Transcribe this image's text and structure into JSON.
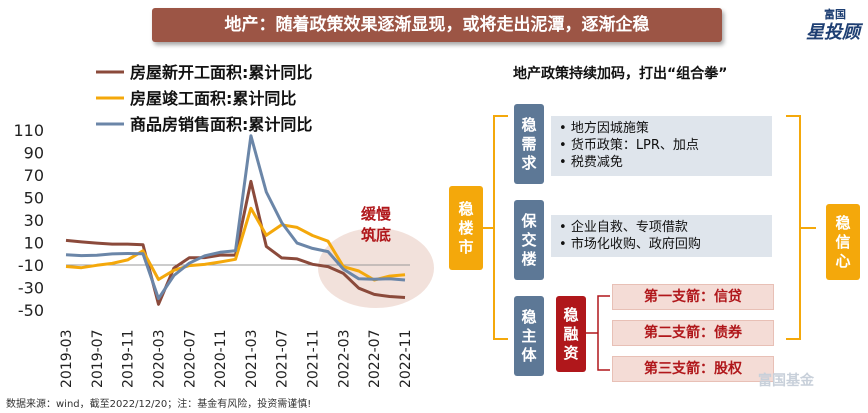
{
  "header": {
    "title": "地产：随着政策效果逐渐显现，或将走出泥潭，逐渐企稳"
  },
  "brand": {
    "small": "富国",
    "big": "星投顾",
    "watermark": "富国基金"
  },
  "footnote": "数据来源：wind，截至2022/12/20；注：基金有风险，投资需谨慎!",
  "chart_data": {
    "type": "line",
    "title": "",
    "xlabel": "",
    "ylabel": "",
    "ylim": [
      -50,
      110
    ],
    "yticks": [
      110,
      90,
      70,
      50,
      30,
      10,
      -10,
      -30,
      -50
    ],
    "x": [
      "2019-03",
      "2019-05",
      "2019-07",
      "2019-09",
      "2019-11",
      "2020-01",
      "2020-03",
      "2020-05",
      "2020-07",
      "2020-09",
      "2020-11",
      "2021-01",
      "2021-03",
      "2021-05",
      "2021-07",
      "2021-09",
      "2021-11",
      "2022-01",
      "2022-03",
      "2022-05",
      "2022-07",
      "2022-09",
      "2022-11"
    ],
    "xticks": [
      "2019-03",
      "2019-07",
      "2019-11",
      "2020-03",
      "2020-07",
      "2020-11",
      "2021-03",
      "2021-07",
      "2021-11",
      "2022-03",
      "2022-07",
      "2022-11"
    ],
    "series": [
      {
        "name": "房屋新开工面积:累计同比",
        "color": "#8b4a3b",
        "values": [
          11.9,
          10.5,
          9.5,
          8.6,
          8.6,
          8,
          -44.9,
          -12.8,
          -3.6,
          -3.4,
          -1.2,
          -1.2,
          64.3,
          6.5,
          -3.7,
          -4.6,
          -9.4,
          -11.4,
          -17.5,
          -30.6,
          -36.1,
          -38,
          -38.9
        ]
      },
      {
        "name": "房屋竣工面积:累计同比",
        "color": "#f4a80b",
        "values": [
          -11.3,
          -12.4,
          -10.3,
          -8.6,
          -5.5,
          2.6,
          -22.9,
          -14.7,
          -10.5,
          -9.5,
          -7.3,
          -4.9,
          40.4,
          16.4,
          25.7,
          23.4,
          16.2,
          11.2,
          -11.5,
          -15.3,
          -23.3,
          -19.9,
          -18.7
        ]
      },
      {
        "name": "商品房销售面积:累计同比",
        "color": "#6b86a8",
        "values": [
          -0.9,
          -1.6,
          -1.3,
          -0.1,
          0.2,
          0,
          -39.9,
          -19.3,
          -8.4,
          -1.8,
          1.3,
          2.6,
          104.9,
          54.9,
          27.7,
          9.5,
          4.8,
          1.9,
          -13.6,
          -22.3,
          -22.7,
          -22.2,
          -23.3
        ]
      }
    ],
    "legend_position": "top-left",
    "annotation": "缓慢筑底"
  },
  "policy": {
    "title": "地产政策持续加码，打出“组合拳”",
    "left_label": "稳楼市",
    "right_label": "稳信心",
    "groups": [
      {
        "label": "稳需求",
        "items": [
          "地方因城施策",
          "货币政策：LPR、加点",
          "税费减免"
        ]
      },
      {
        "label": "保交楼",
        "items": [
          "企业自救、专项借款",
          "市场化收购、政府回购"
        ]
      },
      {
        "label": "稳主体",
        "sub_label": "稳融资",
        "arrows": [
          "第一支箭：信贷",
          "第二支箭：债券",
          "第三支箭：股权"
        ]
      }
    ]
  }
}
